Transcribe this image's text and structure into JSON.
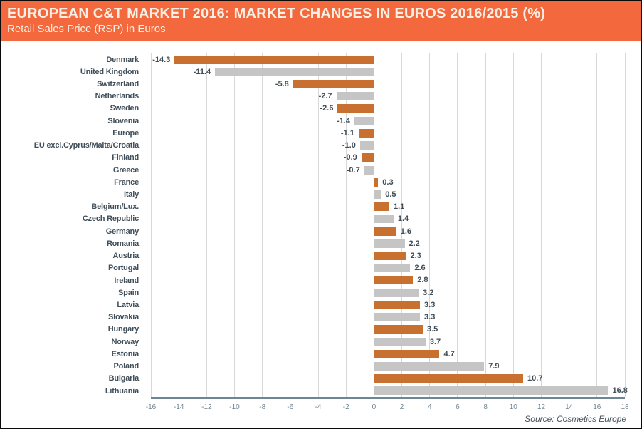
{
  "header": {
    "title": "EUROPEAN C&T MARKET 2016: MARKET CHANGES IN EUROS 2016/2015 (%)",
    "subtitle": "Retail Sales Price (RSP) in Euros"
  },
  "source": "Source: Cosmetics Europe",
  "colors": {
    "header_bg": "#f3683c",
    "header_text": "#f7efe3",
    "bar_orange": "#c7702f",
    "bar_gray": "#c5c5c5",
    "gridline": "#d8d8d8",
    "axis_line": "#6d8693",
    "label_text": "#414f5a",
    "tick_text": "#70828d"
  },
  "chart_data": {
    "type": "bar",
    "orientation": "horizontal",
    "title": "EUROPEAN C&T MARKET 2016: MARKET CHANGES IN EUROS 2016/2015 (%)",
    "subtitle": "Retail Sales Price (RSP) in Euros",
    "xlabel": "",
    "ylabel": "",
    "xlim": [
      -16,
      18
    ],
    "x_ticks": [
      -16,
      -14,
      -12,
      -10,
      -8,
      -6,
      -4,
      -2,
      0,
      2,
      4,
      6,
      8,
      10,
      12,
      14,
      16,
      18
    ],
    "grid": true,
    "legend": null,
    "bar_color_pattern": [
      "#c7702f",
      "#c5c5c5"
    ],
    "categories": [
      "Denmark",
      "United Kingdom",
      "Switzerland",
      "Netherlands",
      "Sweden",
      "Slovenia",
      "Europe",
      "EU excl.Cyprus/Malta/Croatia",
      "Finland",
      "Greece",
      "France",
      "Italy",
      "Belgium/Lux.",
      "Czech Republic",
      "Germany",
      "Romania",
      "Austria",
      "Portugal",
      "Ireland",
      "Spain",
      "Latvia",
      "Slovakia",
      "Hungary",
      "Norway",
      "Estonia",
      "Poland",
      "Bulgaria",
      "Lithuania"
    ],
    "values": [
      -14.3,
      -11.4,
      -5.8,
      -2.7,
      -2.6,
      -1.4,
      -1.1,
      -1.0,
      -0.9,
      -0.7,
      0.3,
      0.5,
      1.1,
      1.4,
      1.6,
      2.2,
      2.3,
      2.6,
      2.8,
      3.2,
      3.3,
      3.3,
      3.5,
      3.7,
      4.7,
      7.9,
      10.7,
      16.8
    ],
    "value_labels": [
      "-14.3",
      "-11.4",
      "-5.8",
      "-2.7",
      "-2.6",
      "-1.4",
      "-1.1",
      "-1.0",
      "-0.9",
      "-0.7",
      "0.3",
      "0.5",
      "1.1",
      "1.4",
      "1.6",
      "2.2",
      "2.3",
      "2.6",
      "2.8",
      "3.2",
      "3.3",
      "3.3",
      "3.5",
      "3.7",
      "4.7",
      "7.9",
      "10.7",
      "16.8"
    ]
  }
}
